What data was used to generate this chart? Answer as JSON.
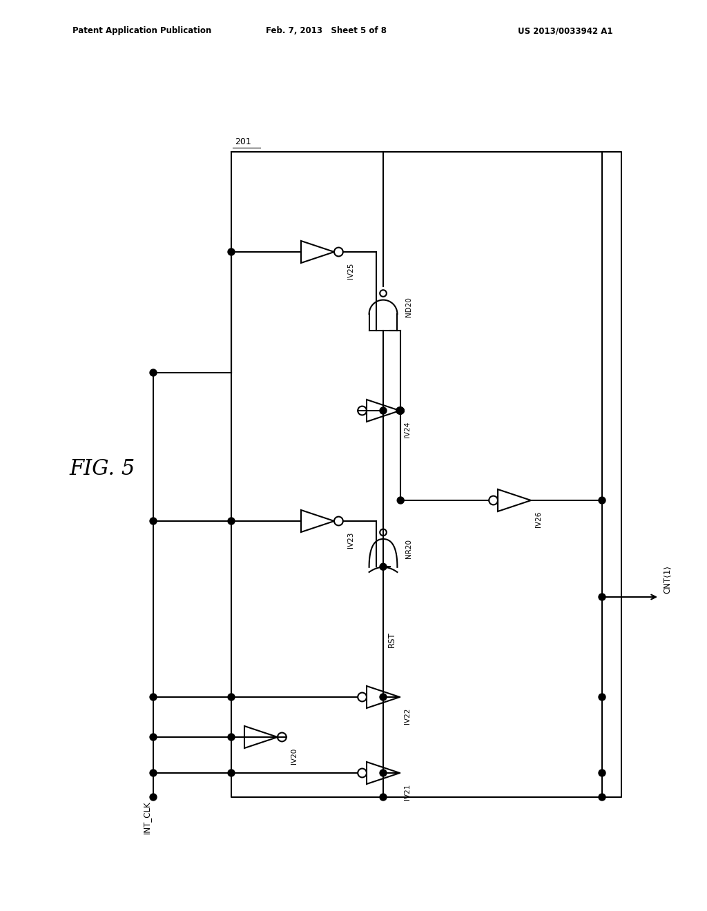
{
  "patent_header_left": "Patent Application Publication",
  "patent_header_mid": "Feb. 7, 2013   Sheet 5 of 8",
  "patent_header_right": "US 2013/0033942 A1",
  "fig_label": "FIG. 5",
  "box_label": "201",
  "input_label": "INT_CLK",
  "output_label": "CNT⟨1⟩",
  "rst_label": "RST",
  "lw": 1.5,
  "dot_r": 0.05,
  "inv_s": 0.32,
  "gate_s": 0.48,
  "line_color": "#000000",
  "bg_color": "#ffffff"
}
